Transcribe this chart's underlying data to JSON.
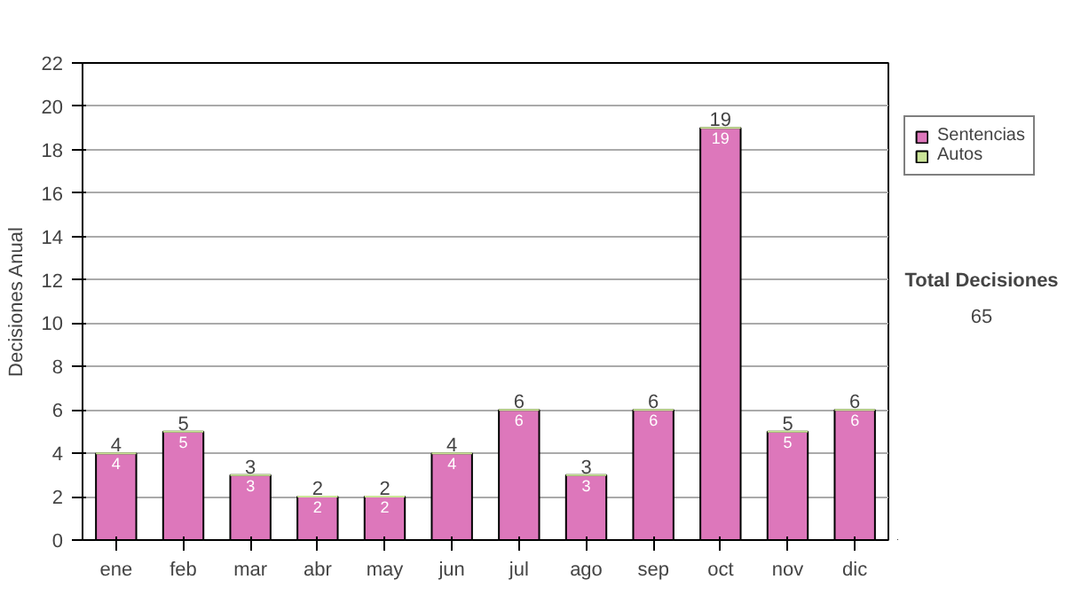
{
  "chart_data": {
    "type": "bar",
    "stacked": true,
    "ylabel": "Decisiones Anual",
    "categories": [
      "ene",
      "feb",
      "mar",
      "abr",
      "may",
      "jun",
      "jul",
      "ago",
      "sep",
      "oct",
      "nov",
      "dic"
    ],
    "series": [
      {
        "name": "Sentencias",
        "color": "#dd77bb",
        "values": [
          4,
          5,
          3,
          2,
          2,
          4,
          6,
          3,
          6,
          19,
          5,
          6
        ],
        "value_labels": [
          "4",
          "5",
          "3",
          "2",
          "2",
          "4",
          "6",
          "3",
          "6",
          "19",
          "5",
          "6"
        ]
      },
      {
        "name": "Autos",
        "color": "#cce699",
        "values": [
          0,
          0,
          0,
          0,
          0,
          0,
          0,
          0,
          0,
          0,
          0,
          0
        ]
      }
    ],
    "ylim": [
      0,
      22
    ],
    "yticks": [
      0,
      2,
      4,
      6,
      8,
      10,
      12,
      14,
      16,
      18,
      20,
      22
    ],
    "grid": "y",
    "legend": "right",
    "totals": [
      "4",
      "5",
      "3",
      "2",
      "2",
      "4",
      "6",
      "3",
      "6",
      "19",
      "5",
      "6"
    ],
    "annotations": [
      "Total Decisiones",
      "65"
    ]
  }
}
